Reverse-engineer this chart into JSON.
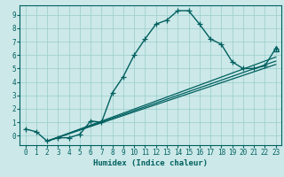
{
  "xlabel": "Humidex (Indice chaleur)",
  "bg_color": "#cce8e8",
  "line_color": "#006060",
  "grid_color": "#99cccc",
  "xlim": [
    -0.5,
    23.5
  ],
  "ylim": [
    -0.7,
    9.7
  ],
  "xticks": [
    0,
    1,
    2,
    3,
    4,
    5,
    6,
    7,
    8,
    9,
    10,
    11,
    12,
    13,
    14,
    15,
    16,
    17,
    18,
    19,
    20,
    21,
    22,
    23
  ],
  "yticks": [
    0,
    1,
    2,
    3,
    4,
    5,
    6,
    7,
    8,
    9
  ],
  "main_line": {
    "x": [
      0,
      1,
      2,
      3,
      4,
      5,
      6,
      7,
      8,
      9,
      10,
      11,
      12,
      13,
      14,
      15,
      16,
      17,
      18,
      19,
      20,
      21,
      22,
      23
    ],
    "y": [
      0.5,
      0.3,
      -0.4,
      -0.15,
      -0.15,
      0.1,
      1.1,
      1.0,
      3.2,
      4.4,
      6.0,
      7.2,
      8.3,
      8.6,
      9.3,
      9.3,
      8.3,
      7.2,
      6.8,
      5.5,
      5.0,
      5.0,
      5.2,
      6.5
    ]
  },
  "regression_lines": [
    {
      "x": [
        2,
        23
      ],
      "y": [
        -0.4,
        5.3
      ]
    },
    {
      "x": [
        2,
        23
      ],
      "y": [
        -0.4,
        5.55
      ]
    },
    {
      "x": [
        2,
        23
      ],
      "y": [
        -0.4,
        5.85
      ]
    }
  ],
  "triangle_point": [
    23,
    6.5
  ],
  "marker_style": "+",
  "marker_size": 4,
  "line_width": 1.0,
  "tick_fontsize": 5.5,
  "xlabel_fontsize": 6.5,
  "font_family": "monospace"
}
